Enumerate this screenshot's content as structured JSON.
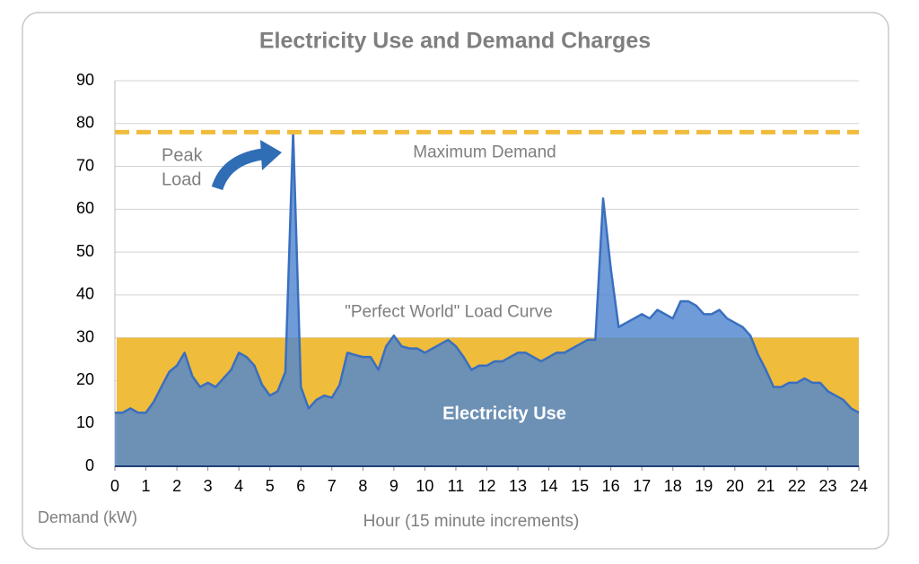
{
  "chart_data": {
    "type": "area",
    "title": "Electricity Use and Demand Charges",
    "y_label": "Demand (kW)",
    "x_label": "Hour (15 minute increments)",
    "peak_label_lines": [
      "Peak",
      "Load"
    ],
    "x": [
      0,
      0.25,
      0.5,
      0.75,
      1,
      1.25,
      1.5,
      1.75,
      2,
      2.25,
      2.5,
      2.75,
      3,
      3.25,
      3.5,
      3.75,
      4,
      4.25,
      4.5,
      4.75,
      5,
      5.25,
      5.5,
      5.75,
      6,
      6.25,
      6.5,
      6.75,
      7,
      7.25,
      7.5,
      7.75,
      8,
      8.25,
      8.5,
      8.75,
      9,
      9.25,
      9.5,
      9.75,
      10,
      10.25,
      10.5,
      10.75,
      11,
      11.25,
      11.5,
      11.75,
      12,
      12.25,
      12.5,
      12.75,
      13,
      13.25,
      13.5,
      13.75,
      14,
      14.25,
      14.5,
      14.75,
      15,
      15.25,
      15.5,
      15.75,
      16,
      16.25,
      16.5,
      16.75,
      17,
      17.25,
      17.5,
      17.75,
      18,
      18.25,
      18.5,
      18.75,
      19,
      19.25,
      19.5,
      19.75,
      20,
      20.25,
      20.5,
      20.75,
      21,
      21.25,
      21.5,
      21.75,
      22,
      22.25,
      22.5,
      22.75,
      23,
      23.25,
      23.5,
      23.75,
      24
    ],
    "series": [
      {
        "name": "Electricity Use",
        "color": "#4f86d0",
        "values": [
          12.5,
          12.5,
          13.5,
          12.5,
          12.5,
          15,
          18.5,
          22,
          23.5,
          26.5,
          21,
          18.5,
          19.5,
          18.5,
          20.5,
          22.5,
          26.5,
          25.5,
          23.5,
          19,
          16.5,
          17.5,
          22,
          78,
          18.5,
          13.5,
          15.5,
          16.5,
          16,
          19,
          26.5,
          26,
          25.5,
          25.5,
          22.5,
          28,
          30.5,
          28,
          27.5,
          27.5,
          26.5,
          27.5,
          28.5,
          29.5,
          28,
          25.5,
          22.5,
          23.5,
          23.5,
          24.5,
          24.5,
          25.5,
          26.5,
          26.5,
          25.5,
          24.5,
          25.5,
          26.5,
          26.5,
          27.5,
          28.5,
          29.5,
          29.5,
          62.5,
          46,
          32.5,
          33.5,
          34.5,
          35.5,
          34.5,
          36.5,
          35.5,
          34.5,
          38.5,
          38.5,
          37.5,
          35.5,
          35.5,
          36.5,
          34.5,
          33.5,
          32.5,
          30.5,
          26,
          22.5,
          18.5,
          18.5,
          19.5,
          19.5,
          20.5,
          19.5,
          19.5,
          17.5,
          16.5,
          15.5,
          13.5,
          12.5
        ]
      }
    ],
    "reference_areas": [
      {
        "label": "\"Perfect World\" Load Curve",
        "value": 30,
        "color": "#f0bc3c"
      }
    ],
    "reference_lines": [
      {
        "label": "Maximum Demand",
        "value": 78,
        "color": "#f0bc3c",
        "dashed": true
      }
    ],
    "xlim": [
      0,
      24
    ],
    "xticks": [
      0,
      1,
      2,
      3,
      4,
      5,
      6,
      7,
      8,
      9,
      10,
      11,
      12,
      13,
      14,
      15,
      16,
      17,
      18,
      19,
      20,
      21,
      22,
      23,
      24
    ],
    "ylim": [
      0,
      90
    ],
    "yticks": [
      0,
      10,
      20,
      30,
      40,
      50,
      60,
      70,
      80,
      90
    ],
    "grid": true
  }
}
